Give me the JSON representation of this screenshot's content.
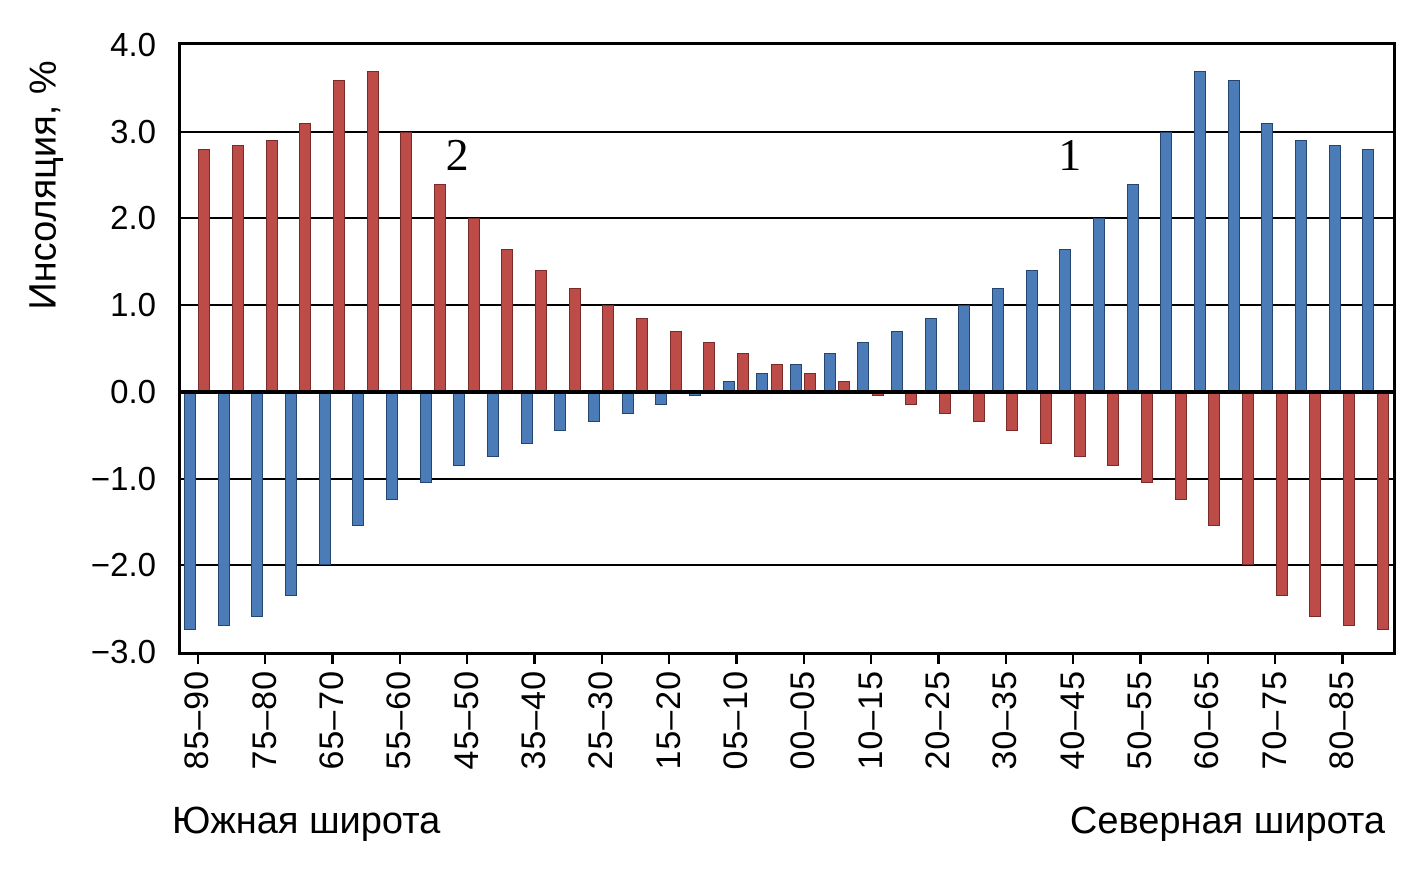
{
  "chart_data": {
    "type": "bar",
    "title": "",
    "ylabel": "Инсоляция, %",
    "xlabel_left": "Южная широта",
    "xlabel_right": "Северная широта",
    "ylim": [
      -3.0,
      4.0
    ],
    "grid": true,
    "legend_position": "none",
    "y_ticks": [
      {
        "label": "4.0",
        "value": 4.0
      },
      {
        "label": "3.0",
        "value": 3.0
      },
      {
        "label": "2.0",
        "value": 2.0
      },
      {
        "label": "1.0",
        "value": 1.0
      },
      {
        "label": "0.0",
        "value": 0.0
      },
      {
        "label": "−1.0",
        "value": -1.0
      },
      {
        "label": "−2.0",
        "value": -2.0
      },
      {
        "label": "−3.0",
        "value": -3.0
      }
    ],
    "categories": [
      "85–90",
      "80–85",
      "75–80",
      "70–75",
      "65–70",
      "60–65",
      "55–60",
      "50–55",
      "45–50",
      "40–45",
      "35–40",
      "30–35",
      "25–30",
      "20–25",
      "15–20",
      "10–15",
      "05–10",
      "00–05",
      "00–05",
      "05–10",
      "10–15",
      "15–20",
      "20–25",
      "25–30",
      "30–35",
      "35–40",
      "40–45",
      "45–50",
      "50–55",
      "55–60",
      "60–65",
      "65–70",
      "70–75",
      "75–80",
      "80–85",
      "85–90"
    ],
    "x_ticks": [
      {
        "index": 0,
        "label": "85–90"
      },
      {
        "index": 2,
        "label": "75–80"
      },
      {
        "index": 4,
        "label": "65–70"
      },
      {
        "index": 6,
        "label": "55–60"
      },
      {
        "index": 8,
        "label": "45–50"
      },
      {
        "index": 10,
        "label": "35–40"
      },
      {
        "index": 12,
        "label": "25–30"
      },
      {
        "index": 14,
        "label": "15–20"
      },
      {
        "index": 16,
        "label": "05–10"
      },
      {
        "index": 18,
        "label": "00–05"
      },
      {
        "index": 20,
        "label": "10–15"
      },
      {
        "index": 22,
        "label": "20–25"
      },
      {
        "index": 24,
        "label": "30–35"
      },
      {
        "index": 26,
        "label": "40–45"
      },
      {
        "index": 28,
        "label": "50–55"
      },
      {
        "index": 30,
        "label": "60–65"
      },
      {
        "index": 32,
        "label": "70–75"
      },
      {
        "index": 34,
        "label": "80–85"
      }
    ],
    "series": [
      {
        "name": "1",
        "color": "#4b7cb8",
        "edge_color": "#24466e",
        "values": [
          -2.75,
          -2.7,
          -2.6,
          -2.35,
          -2.0,
          -1.55,
          -1.25,
          -1.05,
          -0.85,
          -0.75,
          -0.6,
          -0.45,
          -0.35,
          -0.25,
          -0.15,
          -0.05,
          0.12,
          0.22,
          0.32,
          0.45,
          0.58,
          0.7,
          0.85,
          1.0,
          1.2,
          1.4,
          1.65,
          2.0,
          2.4,
          3.0,
          3.7,
          3.6,
          3.1,
          2.9,
          2.85,
          2.8
        ]
      },
      {
        "name": "2",
        "color": "#bd4b47",
        "edge_color": "#782b28",
        "values": [
          2.8,
          2.85,
          2.9,
          3.1,
          3.6,
          3.7,
          3.0,
          2.4,
          2.0,
          1.65,
          1.4,
          1.2,
          1.0,
          0.85,
          0.7,
          0.58,
          0.45,
          0.32,
          0.22,
          0.12,
          -0.05,
          -0.15,
          -0.25,
          -0.35,
          -0.45,
          -0.6,
          -0.75,
          -0.85,
          -1.05,
          -1.25,
          -1.55,
          -2.0,
          -2.35,
          -2.6,
          -2.7,
          -2.75
        ]
      }
    ],
    "annotations": [
      {
        "text": "2",
        "x_group": 7.7,
        "value": 3.0
      },
      {
        "text": "1",
        "x_group": 25.9,
        "value": 3.0
      }
    ]
  }
}
